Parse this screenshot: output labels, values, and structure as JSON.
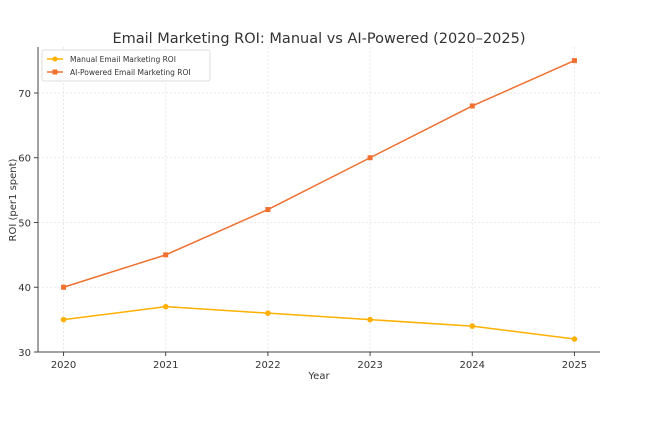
{
  "chart_data": {
    "type": "line",
    "title": "Email Marketing ROI: Manual vs AI-Powered (2020–2025)",
    "xlabel": "Year",
    "ylabel": "ROI (per1 spent)",
    "x": [
      2020,
      2021,
      2022,
      2023,
      2024,
      2025
    ],
    "xticks": [
      "2020",
      "2021",
      "2022",
      "2023",
      "2024",
      "2025"
    ],
    "yticks": [
      30,
      40,
      50,
      60,
      70
    ],
    "xlim": [
      2019.75,
      2025.25
    ],
    "ylim": [
      30,
      77.1
    ],
    "grid": true,
    "legend_placement": "top-left",
    "series": [
      {
        "name": "Manual Email Marketing ROI",
        "values": [
          35,
          37,
          36,
          35,
          34,
          32
        ],
        "color": "#FFB000",
        "marker": "circle"
      },
      {
        "name": "AI-Powered Email Marketing ROI",
        "values": [
          40,
          45,
          52,
          60,
          68,
          75
        ],
        "color": "#F07030",
        "marker": "square"
      }
    ]
  }
}
